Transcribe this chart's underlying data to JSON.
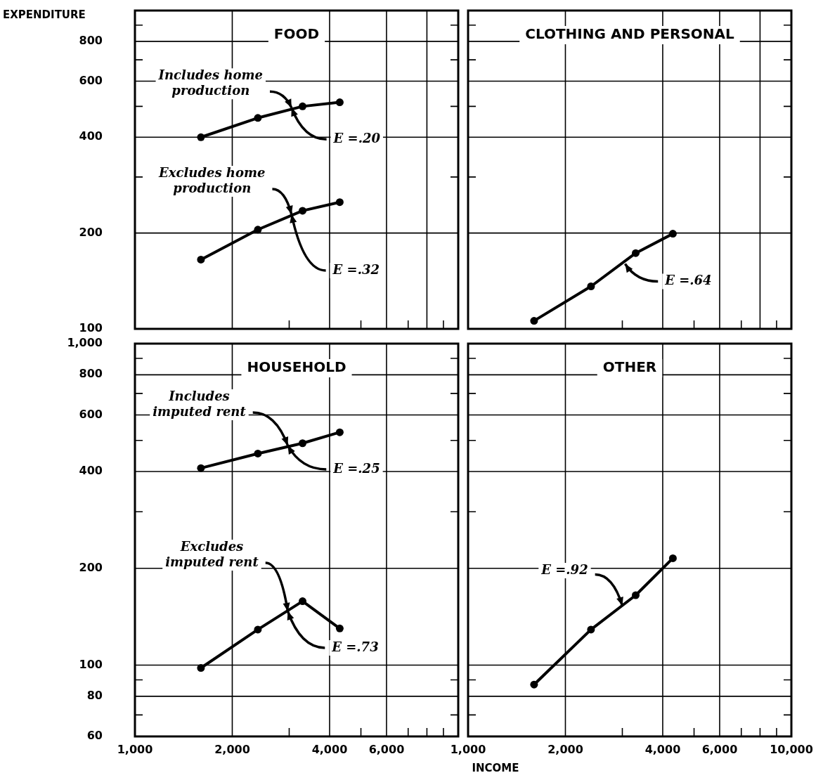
{
  "chart_data": [
    {
      "type": "line",
      "title": "FOOD",
      "ylabel": "EXPENDITURE",
      "x": [
        1600,
        2400,
        3300,
        4300
      ],
      "series": [
        {
          "color": "#000000",
          "values": [
            400,
            460,
            500,
            515
          ]
        },
        {
          "color": "#000000",
          "values": [
            165,
            205,
            235,
            250
          ]
        }
      ],
      "annotations": [
        {
          "text": "Includes home production",
          "x": 3050,
          "y": 495
        },
        {
          "text": "E =.20",
          "x": 3050,
          "y": 495
        },
        {
          "text": "Excludes home production",
          "x": 3050,
          "y": 229
        },
        {
          "text": "E =.32",
          "x": 3050,
          "y": 229
        }
      ],
      "log": "xy",
      "xlim": [
        1000,
        10000
      ],
      "ylim": [
        100,
        1000
      ],
      "xticks": [
        1000,
        2000,
        {
          "value": 3000,
          "label": null
        },
        4000,
        {
          "value": 5000,
          "label": null
        },
        6000,
        {
          "value": 7000,
          "label": null
        },
        8000,
        {
          "value": 9000,
          "label": null
        },
        {
          "value": 10000,
          "label": null
        }
      ],
      "yticks": [
        100,
        200,
        {
          "value": 300,
          "label": null
        },
        400,
        {
          "value": 500,
          "label": null
        },
        600,
        {
          "value": 700,
          "label": null
        },
        800,
        {
          "value": 900,
          "label": null
        },
        {
          "value": 1000,
          "label": null
        }
      ],
      "grid": true,
      "marker": "circle",
      "line_style": "solid",
      "tick_labels": "y"
    },
    {
      "type": "line",
      "title": "CLOTHING AND PERSONAL",
      "x": [
        1600,
        2400,
        3300,
        4300
      ],
      "series": [
        {
          "color": "#000000",
          "values": [
            106,
            136,
            173,
            199
          ]
        }
      ],
      "annotations": [
        {
          "text": "E =.64",
          "x": 3060,
          "y": 160
        }
      ],
      "log": "xy",
      "xlim": [
        1000,
        10000
      ],
      "ylim": [
        100,
        1000
      ],
      "xticks": [
        1000,
        2000,
        {
          "value": 3000,
          "label": null
        },
        4000,
        {
          "value": 5000,
          "label": null
        },
        6000,
        {
          "value": 7000,
          "label": null
        },
        8000,
        {
          "value": 9000,
          "label": null
        },
        10000
      ],
      "yticks": [
        100,
        200,
        {
          "value": 300,
          "label": null
        },
        400,
        {
          "value": 500,
          "label": null
        },
        600,
        {
          "value": 700,
          "label": null
        },
        800,
        {
          "value": 900,
          "label": null
        },
        {
          "value": 1000,
          "label": null
        }
      ],
      "grid": true,
      "marker": "circle",
      "line_style": "solid",
      "tick_labels": false
    },
    {
      "type": "line",
      "title": "HOUSEHOLD",
      "x": [
        1600,
        2400,
        3300,
        4300
      ],
      "series": [
        {
          "color": "#000000",
          "values": [
            410,
            455,
            490,
            530
          ]
        },
        {
          "color": "#000000",
          "values": [
            98,
            129,
            158,
            130
          ]
        }
      ],
      "annotations": [
        {
          "text": "Includes imputed rent",
          "x": 2970,
          "y": 482
        },
        {
          "text": "E =.25",
          "x": 2970,
          "y": 482
        },
        {
          "text": "Excludes imputed rent",
          "x": 2970,
          "y": 147
        },
        {
          "text": "E =.73",
          "x": 2970,
          "y": 147
        }
      ],
      "log": "xy",
      "xlim": [
        1000,
        10000
      ],
      "ylim": [
        60,
        1000
      ],
      "xticks": [
        {
          "value": 1000,
          "label": "1,000"
        },
        {
          "value": 2000,
          "label": "2,000"
        },
        {
          "value": 3000,
          "label": null
        },
        {
          "value": 4000,
          "label": "4,000"
        },
        {
          "value": 5000,
          "label": null
        },
        {
          "value": 6000,
          "label": "6,000"
        },
        {
          "value": 7000,
          "label": null
        },
        {
          "value": 8000,
          "label": null
        },
        {
          "value": 9000,
          "label": null
        },
        {
          "value": 10000,
          "label": null
        }
      ],
      "yticks": [
        60,
        {
          "value": 70,
          "label": null
        },
        80,
        {
          "value": 90,
          "label": null
        },
        100,
        200,
        {
          "value": 300,
          "label": null
        },
        400,
        {
          "value": 500,
          "label": null
        },
        600,
        {
          "value": 700,
          "label": null
        },
        800,
        {
          "value": 900,
          "label": null
        },
        {
          "value": 1000,
          "label": "1,000"
        }
      ],
      "grid": true,
      "marker": "circle",
      "line_style": "solid"
    },
    {
      "type": "line",
      "title": "OTHER",
      "xlabel": "INCOME",
      "x": [
        1600,
        2400,
        3300,
        4300
      ],
      "series": [
        {
          "color": "#000000",
          "values": [
            87,
            129,
            165,
            215
          ]
        }
      ],
      "annotations": [
        {
          "text": "E =.92",
          "x": 3000,
          "y": 153
        }
      ],
      "log": "xy",
      "xlim": [
        1000,
        10000
      ],
      "ylim": [
        60,
        1000
      ],
      "xticks": [
        {
          "value": 1000,
          "label": "1,000"
        },
        {
          "value": 2000,
          "label": "2,000"
        },
        {
          "value": 3000,
          "label": null
        },
        {
          "value": 4000,
          "label": "4,000"
        },
        {
          "value": 5000,
          "label": null
        },
        {
          "value": 6000,
          "label": "6,000"
        },
        {
          "value": 7000,
          "label": null
        },
        {
          "value": 8000,
          "label": null
        },
        {
          "value": 9000,
          "label": null
        },
        {
          "value": 10000,
          "label": "10,000"
        }
      ],
      "yticks": [
        60,
        {
          "value": 70,
          "label": null
        },
        80,
        {
          "value": 90,
          "label": null
        },
        100,
        200,
        {
          "value": 300,
          "label": null
        },
        400,
        {
          "value": 500,
          "label": null
        },
        600,
        {
          "value": 700,
          "label": null
        },
        800,
        {
          "value": 900,
          "label": null
        },
        1000
      ],
      "grid": true,
      "marker": "circle",
      "line_style": "solid",
      "tick_labels": "x"
    }
  ]
}
